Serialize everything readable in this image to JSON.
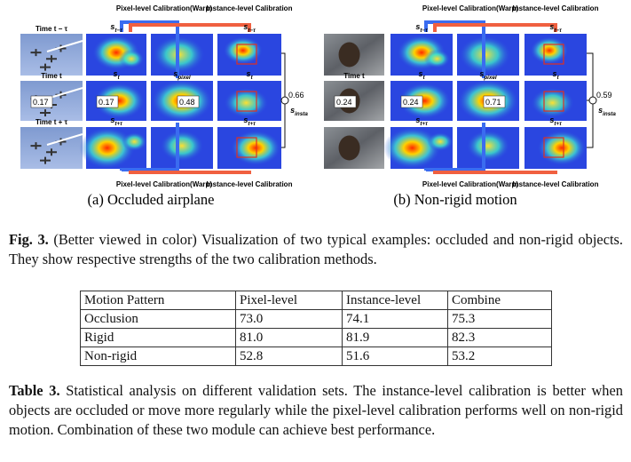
{
  "figure": {
    "panels": [
      {
        "caption": "(a) Occluded airplane",
        "pixel_label_top": "Pixel-level Calibration(Warp)",
        "instance_label_top": "Instance-level Calibration",
        "pixel_label_bottom": "Pixel-level Calibration(Warp)",
        "instance_label_bottom": "Instance-level Calibration",
        "time_labels": [
          "Time t − τ",
          "Time t",
          "Time t + τ"
        ],
        "map_labels": [
          {
            "base": "s",
            "sub": "t−τ"
          },
          {
            "base": "s",
            "sub": "t−τ"
          },
          {
            "base": "s",
            "sub": "t"
          },
          {
            "base": "s",
            "sub": "pixel"
          },
          {
            "base": "s",
            "sub": "t"
          },
          {
            "base": "s",
            "sub": "t+τ"
          },
          {
            "base": "s",
            "sub": "t+τ"
          }
        ],
        "scores": [
          0.17,
          0.17,
          0.48,
          0.66
        ],
        "fused_label": {
          "base": "s",
          "sub": "insta"
        }
      },
      {
        "caption": "(b) Non-rigid motion",
        "pixel_label_top": "Pixel-level Calibration(Warp)",
        "instance_label_top": "Instance-level Calibration",
        "pixel_label_bottom": "Pixel-level Calibration(Warp)",
        "instance_label_bottom": "Instance-level Calibration",
        "time_labels": [
          null,
          "Time t",
          null
        ],
        "map_labels": [
          {
            "base": "s",
            "sub": "t−τ"
          },
          {
            "base": "s",
            "sub": "t−τ"
          },
          {
            "base": "s",
            "sub": "t"
          },
          {
            "base": "s",
            "sub": "pixel"
          },
          {
            "base": "s",
            "sub": "t"
          },
          {
            "base": "s",
            "sub": "t+τ"
          },
          {
            "base": "s",
            "sub": "t+τ"
          }
        ],
        "scores": [
          0.24,
          0.24,
          0.71,
          0.59
        ],
        "fused_label": {
          "base": "s",
          "sub": "insta"
        }
      }
    ]
  },
  "caption": {
    "label": "Fig. 3.",
    "text": "(Better viewed in color) Visualization of two typical examples: occluded and non-rigid objects. They show respective strengths of the two calibration methods."
  },
  "table": {
    "header": [
      "Motion Pattern",
      "Pixel-level",
      "Instance-level",
      "Combine"
    ],
    "rows": [
      [
        "Occlusion",
        "73.0",
        "74.1",
        "75.3"
      ],
      [
        "Rigid",
        "81.0",
        "81.9",
        "82.3"
      ],
      [
        "Non-rigid",
        "52.8",
        "51.6",
        "53.2"
      ]
    ]
  },
  "table_caption": {
    "label": "Table 3.",
    "text": "Statistical analysis on different validation sets. The instance-level calibration is better when objects are occluded or move more regularly while the pixel-level calibration performs well on non-rigid motion. Combination of these two module can achieve best performance."
  }
}
